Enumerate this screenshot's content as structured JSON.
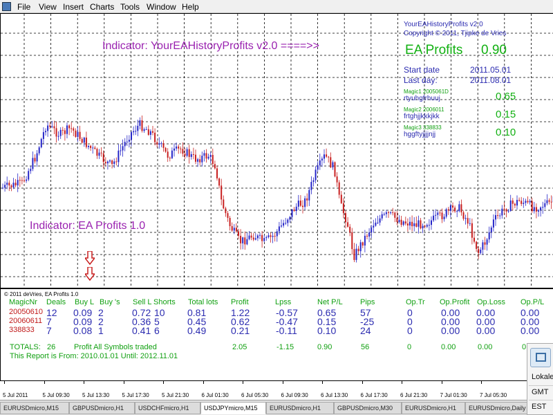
{
  "menu": [
    "File",
    "View",
    "Insert",
    "Charts",
    "Tools",
    "Window",
    "Help"
  ],
  "indicator_top_title": "Indicator:  YourEAHistoryProfits  v2.0   ====>>",
  "indicator_bottom_title": "Indicator:  EA Profits 1.0",
  "ea_panel": {
    "title": "YourEAHistoryProfits v2.0",
    "copyright": "Copyright © 2011, Tjipke de Vries",
    "profit_label": "EA Profits",
    "profit_value": "0.90",
    "start_label": "Start date",
    "start_value": "2011.05.01",
    "last_label": "Last day:",
    "last_value": "2011.08.01",
    "magics": [
      {
        "label": "Magic1   2005061D",
        "name": "rtyuhgfrhuuj",
        "value": "0.65"
      },
      {
        "label": "Magic2   2006011",
        "name": "frtghjjkkkjkk",
        "value": "0.15"
      },
      {
        "label": "Magic3   338833",
        "name": "hggftyjjjjnjj",
        "value": "0.10"
      }
    ]
  },
  "report": {
    "copyright": "© 2011 deVries, EA Profits 1.0",
    "headers": [
      "MagicNr",
      "Deals",
      "Buy L",
      "Buy 's",
      "Sell L",
      "Shorts",
      "Total lots",
      "Profit",
      "Lpss",
      "Net P/L",
      "Pips",
      "Op.Tr",
      "Op.Profit",
      "Op.Loss",
      "Op.P/L"
    ],
    "rows": [
      [
        "20050610",
        "12",
        "0.09",
        "2",
        "0.72",
        "10",
        "0.81",
        "1.22",
        "-0.57",
        "0.65",
        "57",
        "0",
        "0.00",
        "0.00",
        "0.00"
      ],
      [
        "20060611",
        "7",
        "0.09",
        "2",
        "0.36",
        "5",
        "0.45",
        "0.62",
        "-0.47",
        "0.15",
        "-25",
        "0",
        "0.00",
        "0.00",
        "0.00"
      ],
      [
        "338833",
        "7",
        "0.08",
        "1",
        "0.41",
        "6",
        "0.49",
        "0.21",
        "-0.11",
        "0.10",
        "24",
        "0",
        "0.00",
        "0.00",
        "0.00"
      ]
    ],
    "totals_label": "TOTALS:",
    "totals_deals": "26",
    "totals_note": "Profit  All  Symbols  traded",
    "totals_values": [
      "2.05",
      "-1.15",
      "0.90",
      "56",
      "0",
      "0.00",
      "0.00",
      "0.00"
    ],
    "period_text": "This Report is From:  2010.01.01  Until:  2012.11.01"
  },
  "time_axis": [
    "5 Jul 2011",
    "5 Jul 09:30",
    "5 Jul 13:30",
    "5 Jul 17:30",
    "5 Jul 21:30",
    "6 Jul 01:30",
    "6 Jul 05:30",
    "6 Jul 09:30",
    "6 Jul 13:30",
    "6 Jul 17:30",
    "6 Jul 21:30",
    "7 Jul 01:30",
    "7 Jul 05:30"
  ],
  "tabs": [
    "EURUSDmicro,M15",
    "GBPUSDmicro,H1",
    "USDCHFmicro,H1",
    "USDJPYmicro,M15",
    "EURUSDmicro,H1",
    "GBPUSDmicro,M30",
    "EURUSDmicro,H1",
    "EURUSDmicro,Daily"
  ],
  "active_tab": 3,
  "tz_popup": [
    "Lokale",
    "GMT",
    "EST"
  ],
  "colors": {
    "bull": "#2424c8",
    "bear": "#c81e1e",
    "indicator": "#9a22b0",
    "profit_green": "#11b011",
    "arrow": "#c81e1e"
  }
}
